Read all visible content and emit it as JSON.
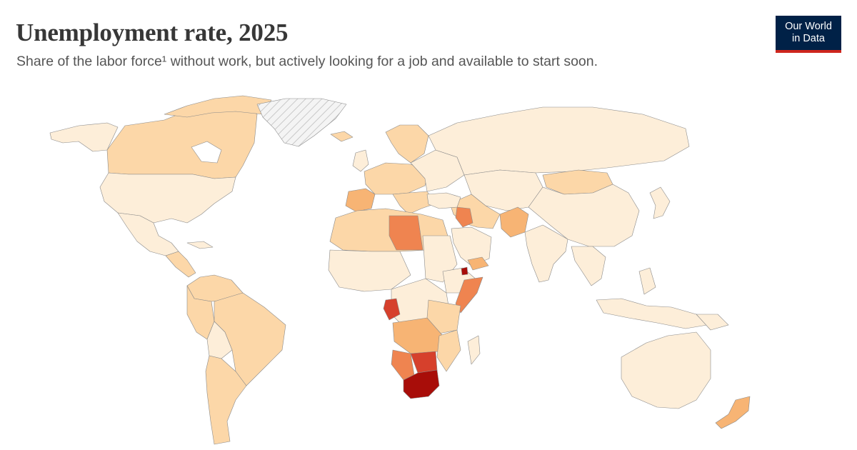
{
  "header": {
    "title": "Unemployment rate, 2025",
    "subtitle": "Share of the labor force¹ without work, but actively looking for a job and available to start soon."
  },
  "logo": {
    "line1": "Our World",
    "line2": "in Data"
  },
  "colors": {
    "very_low": "#fdeed9",
    "low": "#fcd7a8",
    "medium": "#f7b474",
    "high": "#ef8450",
    "very_high": "#d6402c",
    "extreme": "#a80d09",
    "no_data": "hatched-grey",
    "brand_navy": "#002147",
    "brand_red": "#ce261e"
  }
}
